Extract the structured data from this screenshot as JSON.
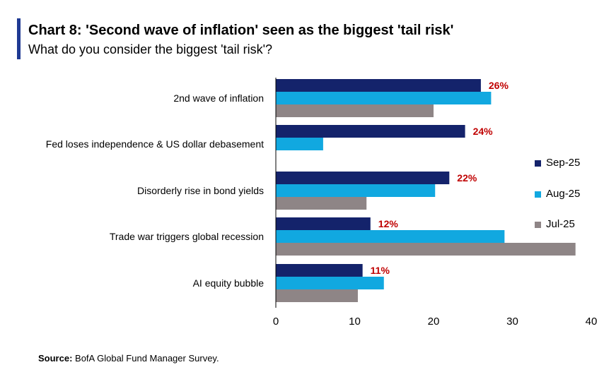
{
  "header": {
    "title": "Chart 8: 'Second wave of inflation' seen as the biggest 'tail risk'",
    "subtitle": "What do you consider the biggest 'tail risk'?"
  },
  "footer": {
    "source_label": "Source:",
    "source_text": "BofA Global Fund Manager Survey."
  },
  "colors": {
    "accent": "#1f3a93",
    "sep25": "#14236b",
    "aug25": "#11a8e0",
    "jul25": "#8e8586",
    "label_red": "#c00000"
  },
  "chart_data": {
    "type": "bar",
    "orientation": "horizontal",
    "categories": [
      "2nd wave of inflation",
      "Fed loses independence & US dollar debasement",
      "Disorderly rise in bond yields",
      "Trade war triggers global recession",
      "AI equity bubble"
    ],
    "series": [
      {
        "name": "Sep-25",
        "values": [
          26,
          24,
          22,
          12,
          11
        ]
      },
      {
        "name": "Aug-25",
        "values": [
          27.3,
          6,
          20.2,
          29,
          13.7
        ]
      },
      {
        "name": "Jul-25",
        "values": [
          20,
          null,
          11.5,
          38,
          10.4
        ]
      }
    ],
    "data_labels": [
      "26%",
      "24%",
      "22%",
      "12%",
      "11%"
    ],
    "x_ticks": [
      "0",
      "10",
      "20",
      "30",
      "40"
    ],
    "xlim": [
      0,
      40
    ],
    "legend_position": "right",
    "grid": false
  }
}
